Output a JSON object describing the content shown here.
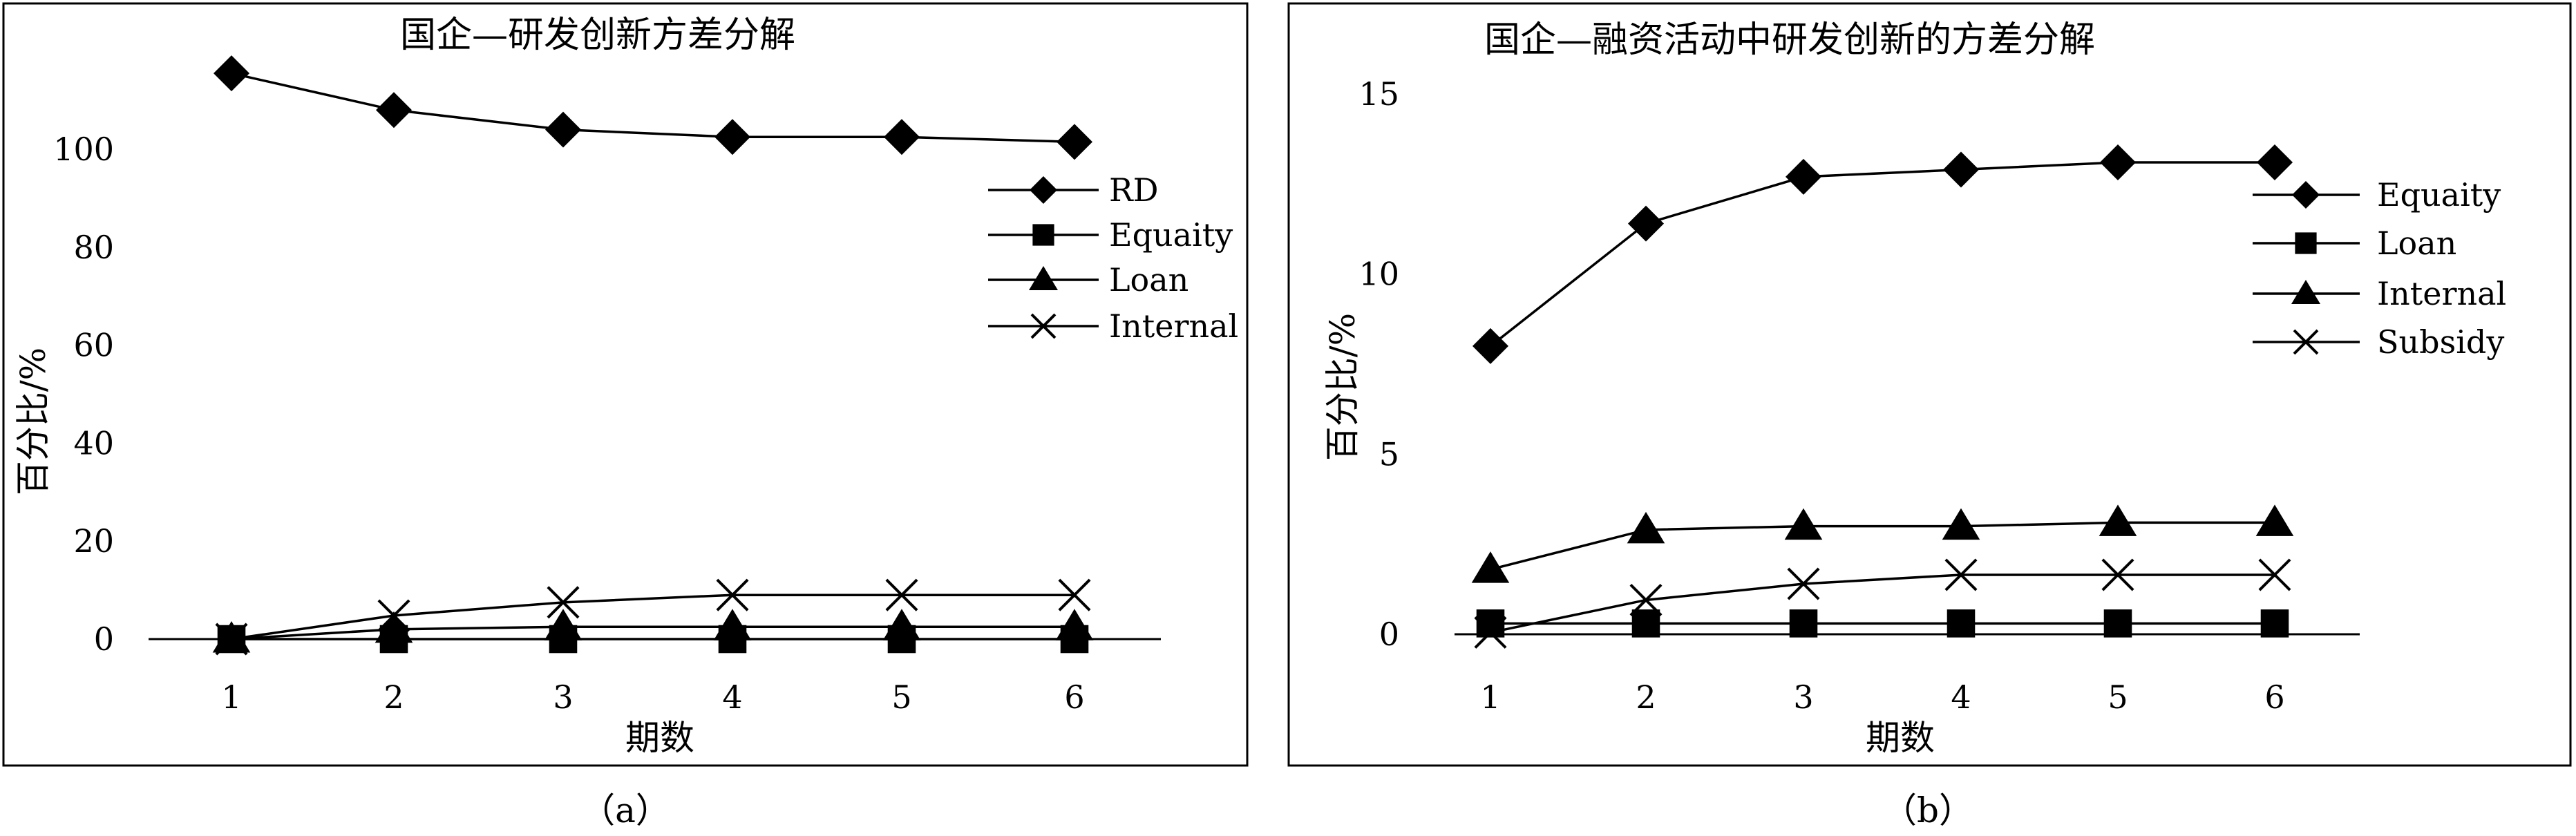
{
  "charts": [
    {
      "type": "line",
      "title": "国企—研发创新方差分解",
      "caption": "（a）",
      "xlabel": "期数",
      "ylabel": "百分比/%",
      "x": [
        1,
        2,
        3,
        4,
        5,
        6
      ],
      "xtick_labels": [
        "1",
        "2",
        "3",
        "4",
        "5",
        "6"
      ],
      "ylim": [
        0,
        110
      ],
      "yticks": [
        0,
        20,
        40,
        60,
        80,
        100
      ],
      "ytick_labels": [
        "0",
        "20",
        "40",
        "60",
        "80",
        "100"
      ],
      "legend_position": "right",
      "series": [
        {
          "name": "RD",
          "marker": "diamond",
          "values": [
            115.5,
            108,
            104,
            102.5,
            102.5,
            101.5
          ]
        },
        {
          "name": "Equaity",
          "marker": "square",
          "values": [
            0,
            0,
            0,
            0,
            0,
            0
          ]
        },
        {
          "name": "Loan",
          "marker": "triangle",
          "values": [
            0,
            2,
            2.5,
            2.5,
            2.5,
            2.5
          ]
        },
        {
          "name": "Internal",
          "marker": "cross",
          "values": [
            0,
            4.8,
            7.5,
            9,
            9,
            9
          ]
        }
      ]
    },
    {
      "type": "line",
      "title": "国企—融资活动中研发创新的方差分解",
      "caption": "（b）",
      "xlabel": "期数",
      "ylabel": "百分比/%",
      "x": [
        1,
        2,
        3,
        4,
        5,
        6
      ],
      "xtick_labels": [
        "1",
        "2",
        "3",
        "4",
        "5",
        "6"
      ],
      "ylim": [
        0,
        15
      ],
      "yticks": [
        0,
        5,
        10,
        15
      ],
      "ytick_labels": [
        "0",
        "5",
        "10",
        "15"
      ],
      "legend_position": "right",
      "series": [
        {
          "name": "Equaity",
          "marker": "diamond",
          "values": [
            8,
            11.4,
            12.7,
            12.9,
            13.1,
            13.1
          ]
        },
        {
          "name": "Loan",
          "marker": "square",
          "values": [
            0.3,
            0.3,
            0.3,
            0.3,
            0.3,
            0.3
          ]
        },
        {
          "name": "Internal",
          "marker": "triangle",
          "values": [
            1.8,
            2.9,
            3,
            3,
            3.1,
            3.1
          ]
        },
        {
          "name": "Subsidy",
          "marker": "cross",
          "values": [
            0.05,
            0.95,
            1.4,
            1.65,
            1.65,
            1.65
          ]
        }
      ]
    }
  ]
}
